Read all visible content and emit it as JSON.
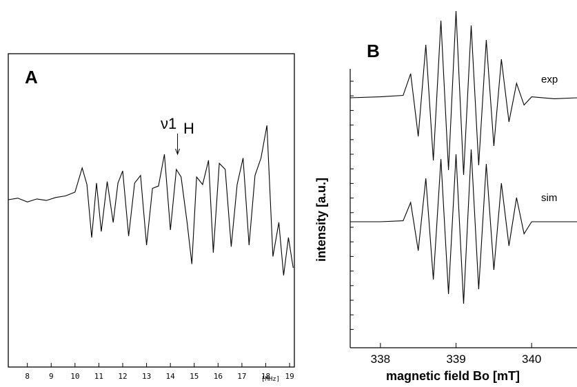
{
  "chart_data": [
    {
      "panel": "A",
      "type": "line",
      "x_ticks": [
        "8",
        "9",
        "10",
        "11",
        "12",
        "13",
        "14",
        "15",
        "16",
        "17",
        "18",
        "19"
      ],
      "x_unit_label": "[MHz]",
      "xlim": [
        7.2,
        19.2
      ],
      "annotation": {
        "label": "ν1",
        "subscript": "H",
        "x": 14.3
      },
      "series": [
        {
          "x": [
            7.2,
            7.6,
            8.0,
            8.4,
            8.8,
            9.2,
            9.6,
            10.0,
            10.3,
            10.5,
            10.7,
            10.9,
            11.1,
            11.35,
            11.6,
            11.8,
            12.0,
            12.25,
            12.5,
            12.75,
            13.0,
            13.25,
            13.5,
            13.75,
            14.0,
            14.25,
            14.45,
            14.7,
            14.9,
            15.1,
            15.35,
            15.6,
            15.8,
            16.05,
            16.3,
            16.55,
            16.8,
            17.05,
            17.3,
            17.55,
            17.8,
            18.05,
            18.3,
            18.55,
            18.75,
            18.95,
            19.15
          ],
          "y": [
            0.0,
            0.02,
            -0.03,
            0.01,
            -0.01,
            0.03,
            0.05,
            0.1,
            0.42,
            0.2,
            -0.5,
            0.22,
            -0.42,
            0.24,
            -0.3,
            0.22,
            0.38,
            -0.48,
            0.22,
            0.32,
            -0.6,
            0.15,
            0.18,
            0.6,
            -0.4,
            0.4,
            0.3,
            -0.3,
            -0.85,
            0.3,
            0.2,
            0.52,
            -0.7,
            0.48,
            0.4,
            -0.62,
            0.2,
            0.55,
            -0.6,
            0.32,
            0.55,
            0.98,
            -0.75,
            -0.3,
            -1.0,
            -0.5,
            -0.9
          ]
        }
      ]
    },
    {
      "panel": "B",
      "type": "line",
      "x_ticks": [
        "338",
        "339",
        "340"
      ],
      "xlim": [
        337.6,
        340.6
      ],
      "xlabel": "magnetic field Bo [mT]",
      "ylabel": "intensity [a.u.]",
      "series": [
        {
          "name": "exp",
          "x": [
            337.6,
            338.0,
            338.3,
            338.4,
            338.5,
            338.6,
            338.7,
            338.8,
            338.9,
            339.0,
            339.1,
            339.2,
            339.3,
            339.4,
            339.5,
            339.6,
            339.7,
            339.8,
            339.9,
            340.0,
            340.3,
            340.6
          ],
          "y": [
            0.0,
            0.02,
            0.05,
            0.5,
            -0.8,
            1.1,
            -1.3,
            1.6,
            -1.5,
            1.8,
            -1.6,
            1.5,
            -1.4,
            1.2,
            -1.0,
            0.8,
            -0.5,
            0.3,
            -0.15,
            0.02,
            -0.02,
            0.0
          ]
        },
        {
          "name": "sim",
          "x": [
            337.6,
            338.0,
            338.3,
            338.4,
            338.5,
            338.6,
            338.7,
            338.8,
            338.9,
            339.0,
            339.1,
            339.2,
            339.3,
            339.4,
            339.5,
            339.6,
            339.7,
            339.8,
            339.9,
            340.0,
            340.3,
            340.6
          ],
          "y": [
            0.0,
            0.0,
            0.02,
            0.4,
            -0.6,
            0.9,
            -1.2,
            1.3,
            -1.5,
            1.4,
            -1.7,
            1.5,
            -1.4,
            1.2,
            -1.0,
            0.8,
            -0.5,
            0.5,
            -0.25,
            0.0,
            0.0,
            0.0
          ]
        }
      ]
    }
  ]
}
